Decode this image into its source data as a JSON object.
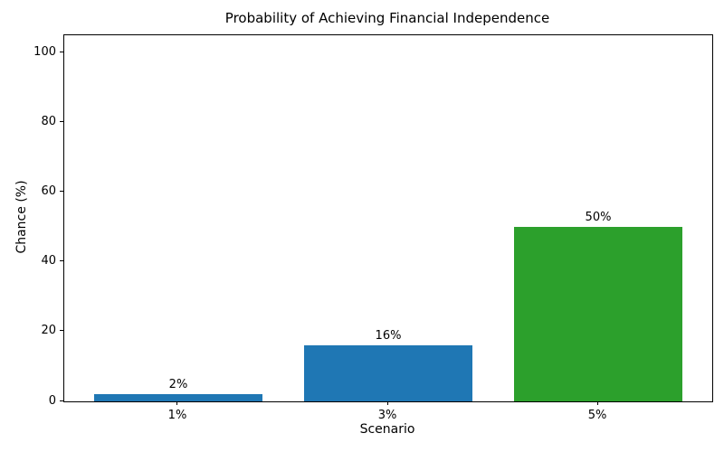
{
  "chart_data": {
    "type": "bar",
    "title": "Probability of Achieving Financial Independence",
    "xlabel": "Scenario",
    "ylabel": "Chance (%)",
    "categories": [
      "1%",
      "3%",
      "5%"
    ],
    "values": [
      2,
      16,
      50
    ],
    "bar_labels": [
      "2%",
      "16%",
      "50%"
    ],
    "bar_colors": [
      "#1f77b4",
      "#1f77b4",
      "#2ca02c"
    ],
    "ylim": [
      0,
      105
    ],
    "yticks": [
      0,
      20,
      40,
      60,
      80,
      100
    ],
    "grid": false,
    "legend": "none",
    "bar_width_ratio": 0.8
  }
}
